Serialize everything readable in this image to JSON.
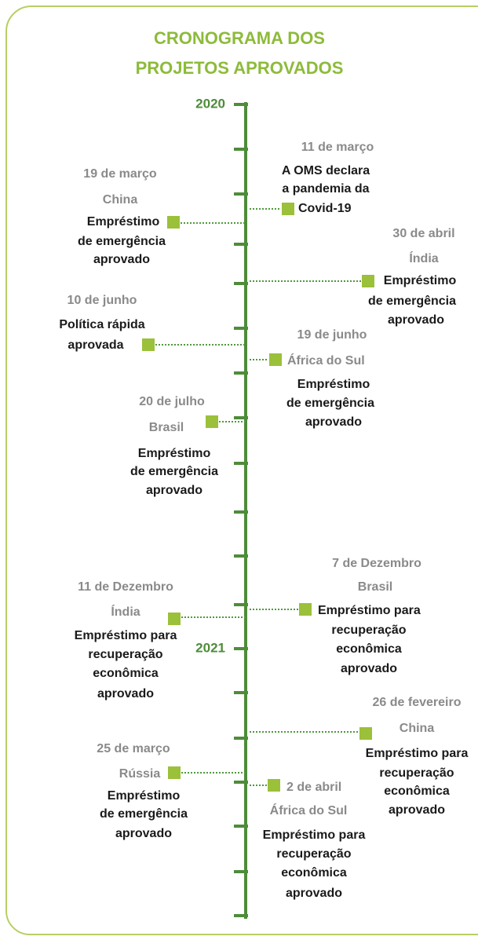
{
  "title": [
    "CRONOGRAMA DOS",
    "PROJETOS APROVADOS"
  ],
  "years": [
    "2020",
    "2021"
  ],
  "events": [
    {
      "date": "11 de março",
      "description": [
        "A OMS declara",
        "a pandemia da",
        "Covid-19"
      ]
    },
    {
      "date": "19 de março",
      "location": "China",
      "description": [
        "Empréstimo",
        "de emergência",
        "aprovado"
      ]
    },
    {
      "date": "30 de abril",
      "location": "Índia",
      "description": [
        "Empréstimo",
        "de emergência",
        "aprovado"
      ]
    },
    {
      "date": "10 de junho",
      "description": [
        "Política rápida",
        "aprovada"
      ]
    },
    {
      "date": "19 de junho",
      "location": "África do Sul",
      "description": [
        "Empréstimo",
        "de emergência",
        "aprovado"
      ]
    },
    {
      "date": "20 de julho",
      "location": "Brasil",
      "description": [
        "Empréstimo",
        "de emergência",
        "aprovado"
      ]
    },
    {
      "date": "7 de Dezembro",
      "location": "Brasil",
      "description": [
        "Empréstimo para",
        "recuperação",
        "econômica",
        "aprovado"
      ]
    },
    {
      "date": "11 de Dezembro",
      "location": "Índia",
      "description": [
        "Empréstimo para",
        "recuperação",
        "econômica",
        "aprovado"
      ]
    },
    {
      "date": "26 de fevereiro",
      "location": "China",
      "description": [
        "Empréstimo para",
        "recuperação",
        "econômica",
        "aprovado"
      ]
    },
    {
      "date": "25 de março",
      "location": "Rússia",
      "description": [
        "Empréstimo",
        "de emergência",
        "aprovado"
      ]
    },
    {
      "date": "2 de abril",
      "location": "África do Sul",
      "description": [
        "Empréstimo para",
        "recuperação",
        "econômica",
        "aprovado"
      ]
    }
  ]
}
